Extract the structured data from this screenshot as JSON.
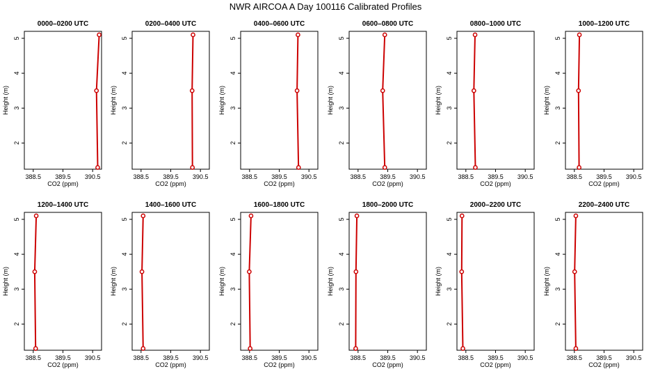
{
  "title": "NWR AIRCOA A  Day 100116  Calibrated Profiles",
  "colors": {
    "profile": "#cc0000",
    "axis": "#000000"
  },
  "chart_data": {
    "type": "line",
    "xlabel": "CO2 (ppm)",
    "ylabel": "Height (m)",
    "xlim": [
      388.2,
      390.8
    ],
    "ylim": [
      1.25,
      5.2
    ],
    "xticks": [
      388.5,
      389.5,
      390.5
    ],
    "xtick_labels": [
      "388.5",
      "389.5",
      "390.5"
    ],
    "yticks": [
      2,
      3,
      4,
      5
    ],
    "ytick_labels": [
      "2",
      "3",
      "4",
      "5"
    ],
    "panels": [
      {
        "title": "0000–0200 UTC",
        "points": [
          {
            "co2": 390.67,
            "height": 1.3
          },
          {
            "co2": 390.63,
            "height": 3.5
          },
          {
            "co2": 390.72,
            "height": 5.1
          }
        ]
      },
      {
        "title": "0200–0400 UTC",
        "points": [
          {
            "co2": 390.23,
            "height": 1.3
          },
          {
            "co2": 390.22,
            "height": 3.5
          },
          {
            "co2": 390.25,
            "height": 5.1
          }
        ]
      },
      {
        "title": "0400–0600 UTC",
        "points": [
          {
            "co2": 390.15,
            "height": 1.3
          },
          {
            "co2": 390.1,
            "height": 3.5
          },
          {
            "co2": 390.13,
            "height": 5.1
          }
        ]
      },
      {
        "title": "0600–0800 UTC",
        "points": [
          {
            "co2": 389.4,
            "height": 1.3
          },
          {
            "co2": 389.33,
            "height": 3.5
          },
          {
            "co2": 389.4,
            "height": 5.1
          }
        ]
      },
      {
        "title": "0800–1000 UTC",
        "points": [
          {
            "co2": 388.82,
            "height": 1.3
          },
          {
            "co2": 388.77,
            "height": 3.5
          },
          {
            "co2": 388.81,
            "height": 5.1
          }
        ]
      },
      {
        "title": "1000–1200 UTC",
        "points": [
          {
            "co2": 388.66,
            "height": 1.3
          },
          {
            "co2": 388.64,
            "height": 3.5
          },
          {
            "co2": 388.67,
            "height": 5.1
          }
        ]
      },
      {
        "title": "1200–1400 UTC",
        "points": [
          {
            "co2": 388.58,
            "height": 1.3
          },
          {
            "co2": 388.55,
            "height": 3.5
          },
          {
            "co2": 388.6,
            "height": 5.1
          }
        ]
      },
      {
        "title": "1400–1600 UTC",
        "points": [
          {
            "co2": 388.57,
            "height": 1.3
          },
          {
            "co2": 388.53,
            "height": 3.5
          },
          {
            "co2": 388.57,
            "height": 5.1
          }
        ]
      },
      {
        "title": "1600–1800 UTC",
        "points": [
          {
            "co2": 388.52,
            "height": 1.3
          },
          {
            "co2": 388.49,
            "height": 3.5
          },
          {
            "co2": 388.55,
            "height": 5.1
          }
        ]
      },
      {
        "title": "1800–2000 UTC",
        "points": [
          {
            "co2": 388.42,
            "height": 1.3
          },
          {
            "co2": 388.43,
            "height": 3.5
          },
          {
            "co2": 388.46,
            "height": 5.1
          }
        ]
      },
      {
        "title": "2000–2200 UTC",
        "points": [
          {
            "co2": 388.4,
            "height": 1.3
          },
          {
            "co2": 388.36,
            "height": 3.5
          },
          {
            "co2": 388.37,
            "height": 5.1
          }
        ]
      },
      {
        "title": "2200–2400 UTC",
        "points": [
          {
            "co2": 388.55,
            "height": 1.3
          },
          {
            "co2": 388.51,
            "height": 3.5
          },
          {
            "co2": 388.55,
            "height": 5.1
          }
        ]
      }
    ]
  }
}
